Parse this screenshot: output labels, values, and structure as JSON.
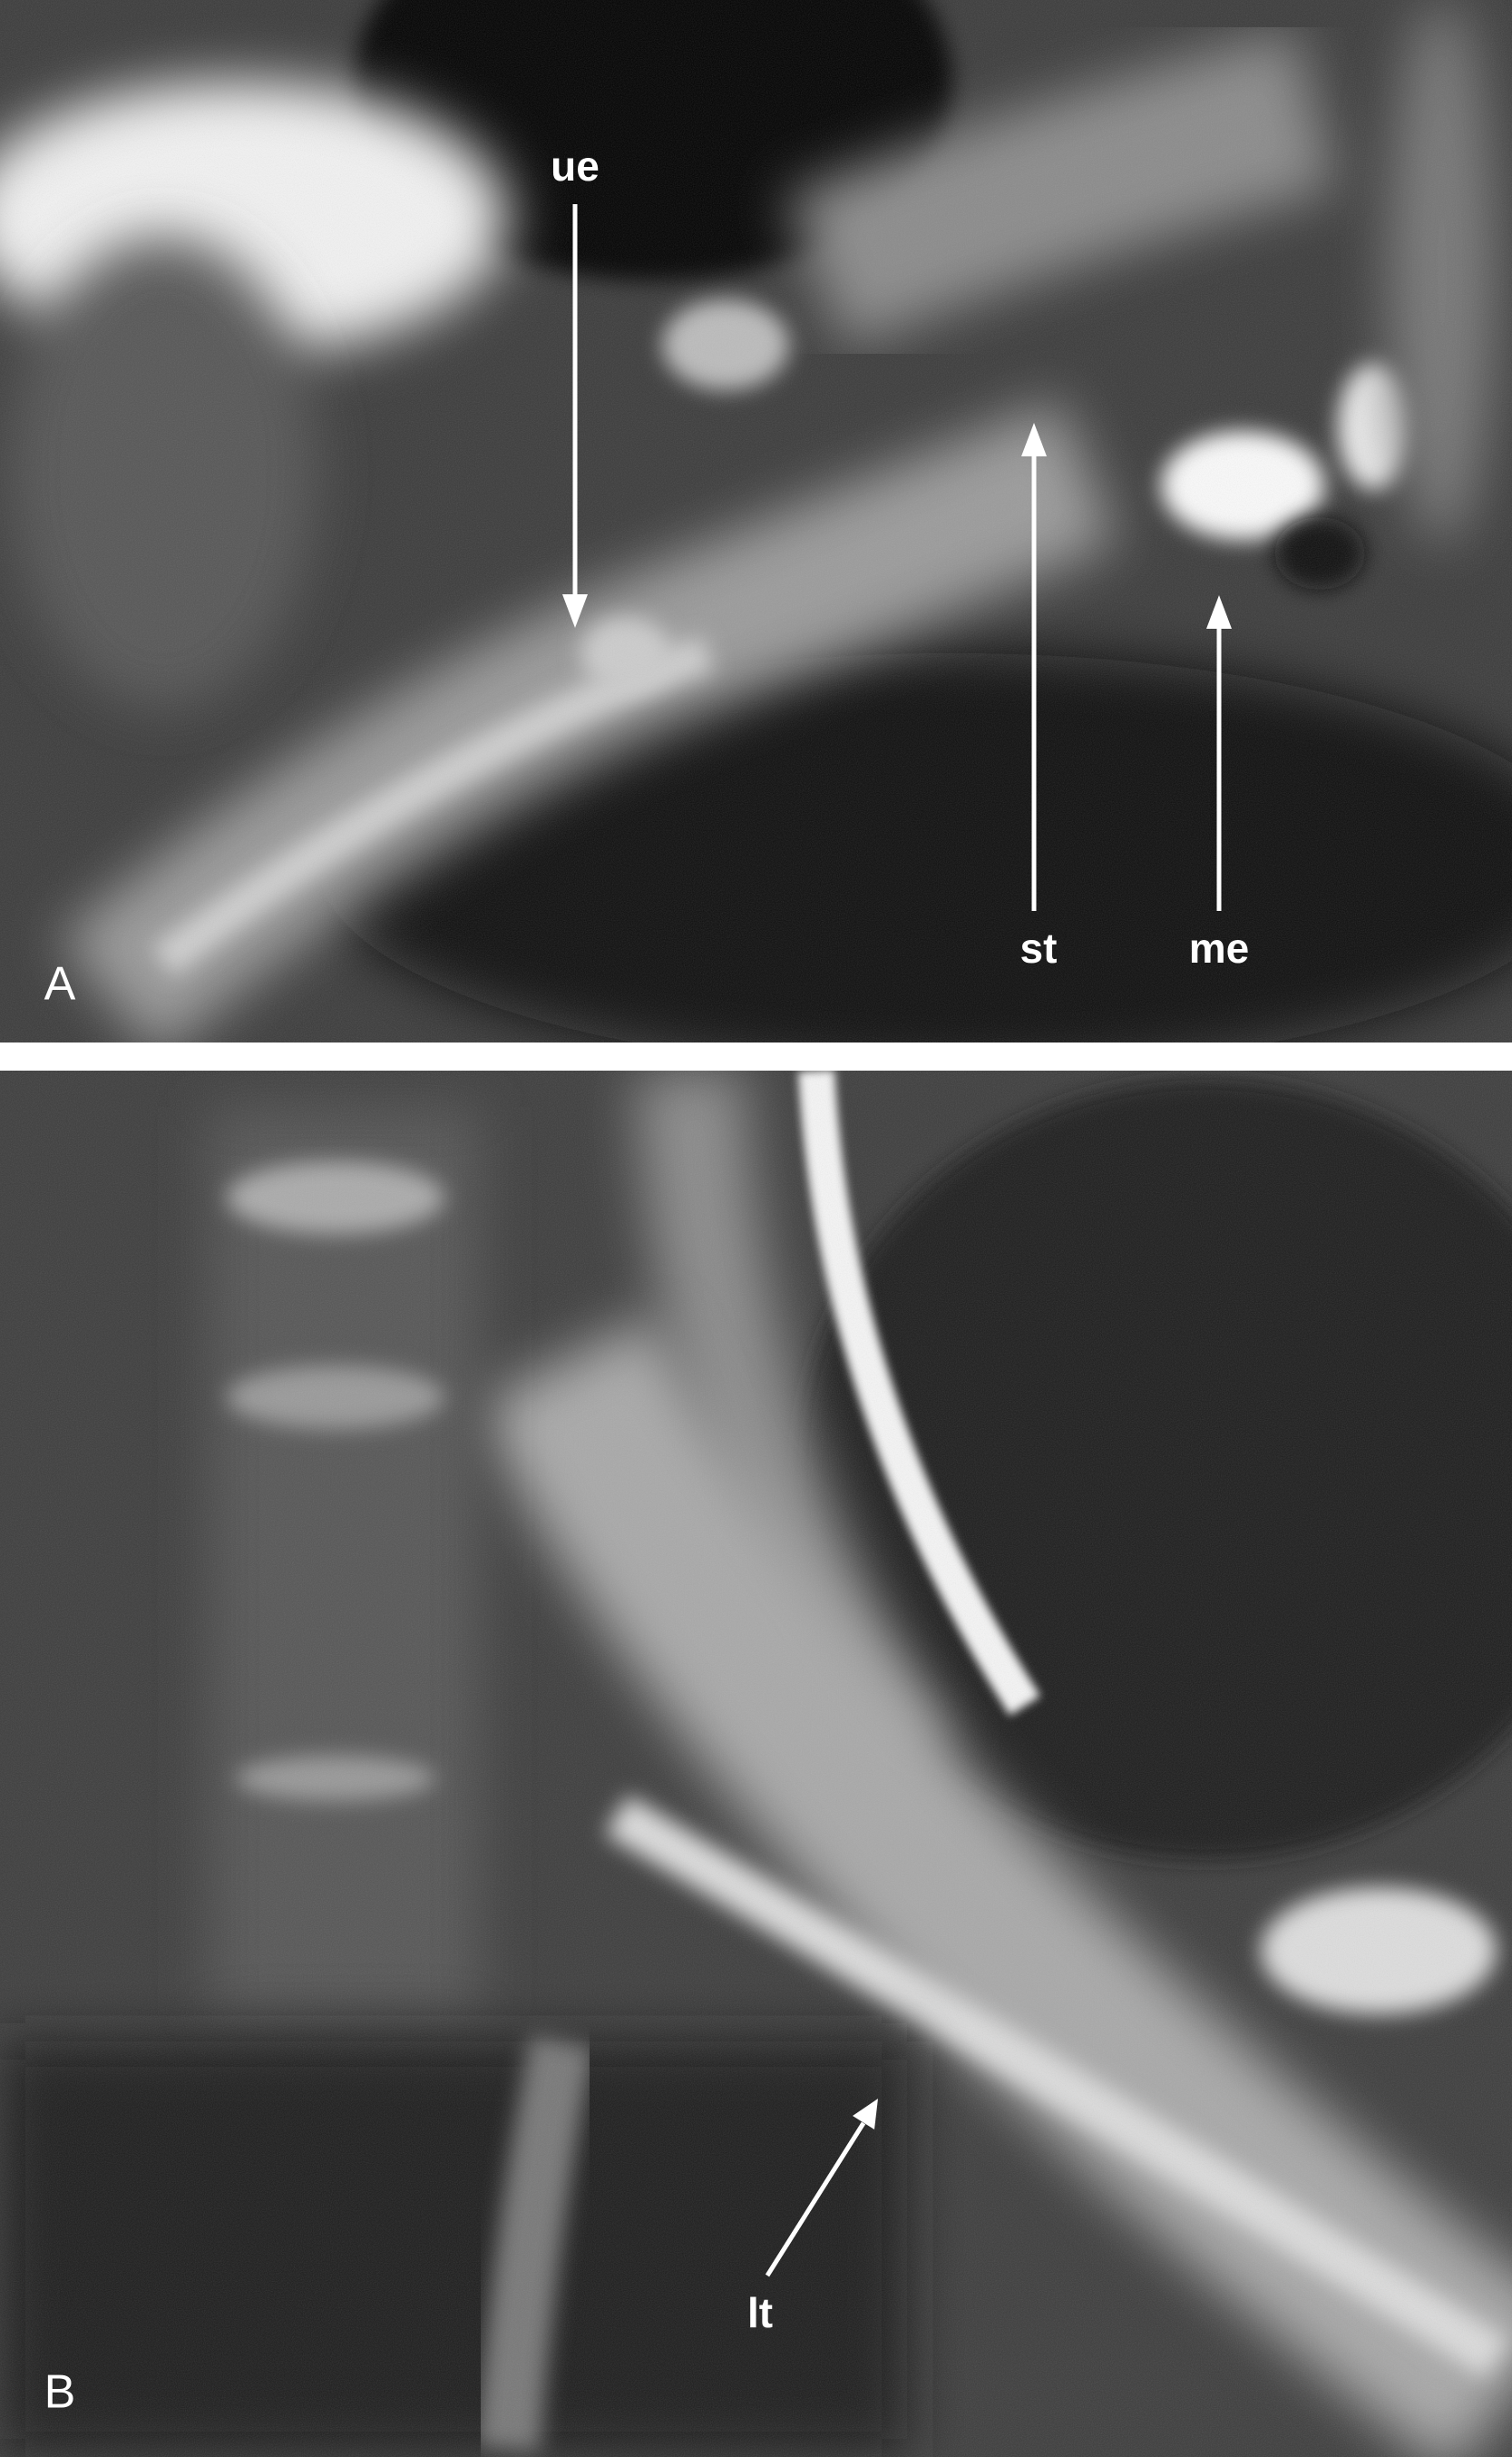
{
  "panels": [
    {
      "label": "A",
      "annotations": [
        "ue",
        "st",
        "me"
      ]
    },
    {
      "label": "B",
      "annotations": [
        "lt"
      ]
    }
  ]
}
